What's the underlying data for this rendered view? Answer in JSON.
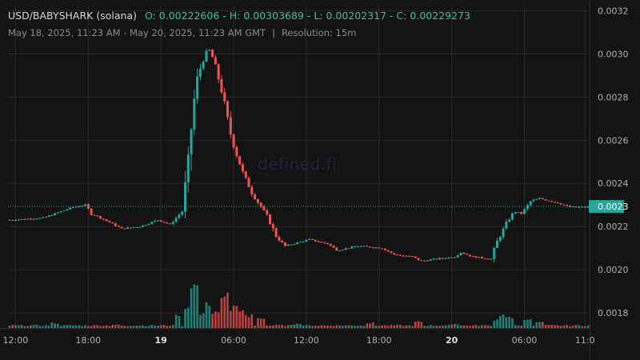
{
  "header": {
    "pair": "USD/BABYSHARK (solana)",
    "ohlc": "O: 0.00222606 - H: 0.00303689 - L: 0.00202317 - C: 0.00229273",
    "range": "May 18, 2025, 11:23 AM - May 20, 2025, 11:23 AM GMT",
    "separator": "|",
    "resolution": "Resolution: 15m"
  },
  "watermark": "defined.fi",
  "colors": {
    "up": "#26a69a",
    "down": "#ef5350",
    "grid": "#2a2a2a",
    "bg": "#131313",
    "price_tag": "#26a69a"
  },
  "chart_data": {
    "type": "candlestick",
    "ylim": [
      0.00173,
      0.00322
    ],
    "y_ticks": [
      "0.0032",
      "0.0030",
      "0.0028",
      "0.0026",
      "0.0024",
      "0.0022",
      "0.0020",
      "0.0018"
    ],
    "y_tick_values": [
      0.0032,
      0.003,
      0.0028,
      0.0026,
      0.0024,
      0.0022,
      0.002,
      0.0018
    ],
    "x_ticks": [
      "12:00",
      "18:00",
      "19",
      "06:00",
      "12:00",
      "18:00",
      "20",
      "06:00",
      "11:0"
    ],
    "x_tick_bold": [
      false,
      false,
      true,
      false,
      false,
      false,
      true,
      false,
      false
    ],
    "x_tick_hours": [
      0.62,
      6.62,
      12.62,
      18.62,
      24.62,
      30.62,
      36.62,
      42.62,
      47.62
    ],
    "current_price_label": "0.0023",
    "current_price": 0.00229273,
    "grid": true,
    "price_path": [
      [
        0,
        0.00223
      ],
      [
        3,
        0.00224
      ],
      [
        4,
        0.00226
      ],
      [
        5.5,
        0.00229
      ],
      [
        6.5,
        0.0023
      ],
      [
        7,
        0.00226
      ],
      [
        8.5,
        0.00222
      ],
      [
        9.5,
        0.00219
      ],
      [
        11,
        0.0022
      ],
      [
        12.5,
        0.00223
      ],
      [
        13.5,
        0.00221
      ],
      [
        14.5,
        0.00227
      ],
      [
        15,
        0.0025
      ],
      [
        15.4,
        0.00275
      ],
      [
        15.8,
        0.0029
      ],
      [
        16.4,
        0.003
      ],
      [
        16.8,
        0.00302
      ],
      [
        17.3,
        0.00293
      ],
      [
        17.8,
        0.00282
      ],
      [
        18.4,
        0.00265
      ],
      [
        18.9,
        0.00255
      ],
      [
        19.5,
        0.00245
      ],
      [
        20.3,
        0.00235
      ],
      [
        21.5,
        0.00225
      ],
      [
        22.3,
        0.00215
      ],
      [
        23,
        0.00211
      ],
      [
        25,
        0.00214
      ],
      [
        26.5,
        0.00212
      ],
      [
        27.3,
        0.00209
      ],
      [
        29,
        0.00211
      ],
      [
        31,
        0.0021
      ],
      [
        32,
        0.00207
      ],
      [
        33.5,
        0.00206
      ],
      [
        34.2,
        0.00204
      ],
      [
        35.5,
        0.00205
      ],
      [
        37,
        0.00206
      ],
      [
        37.5,
        0.00208
      ],
      [
        38.5,
        0.00206
      ],
      [
        40,
        0.00205
      ],
      [
        40.5,
        0.00213
      ],
      [
        41.3,
        0.00222
      ],
      [
        41.9,
        0.00227
      ],
      [
        42.5,
        0.00226
      ],
      [
        43.3,
        0.00232
      ],
      [
        44,
        0.00233
      ],
      [
        45.5,
        0.00231
      ],
      [
        46.5,
        0.00229
      ],
      [
        47.5,
        0.00229
      ],
      [
        48,
        0.00229
      ]
    ],
    "volume_spikes": [
      [
        4,
        0.12
      ],
      [
        9,
        0.08
      ],
      [
        14.2,
        0.3
      ],
      [
        14.8,
        0.45
      ],
      [
        15.2,
        0.5
      ],
      [
        15.5,
        1.0
      ],
      [
        16,
        0.35
      ],
      [
        16.6,
        0.6
      ],
      [
        17.2,
        0.4
      ],
      [
        17.6,
        0.35
      ],
      [
        18,
        0.82
      ],
      [
        18.4,
        0.4
      ],
      [
        18.8,
        0.5
      ],
      [
        19.3,
        0.4
      ],
      [
        20,
        0.3
      ],
      [
        21,
        0.25
      ],
      [
        24,
        0.1
      ],
      [
        30,
        0.12
      ],
      [
        34,
        0.15
      ],
      [
        37,
        0.1
      ],
      [
        40.5,
        0.2
      ],
      [
        41,
        0.3
      ],
      [
        41.5,
        0.25
      ],
      [
        43,
        0.2
      ],
      [
        44,
        0.15
      ]
    ]
  }
}
